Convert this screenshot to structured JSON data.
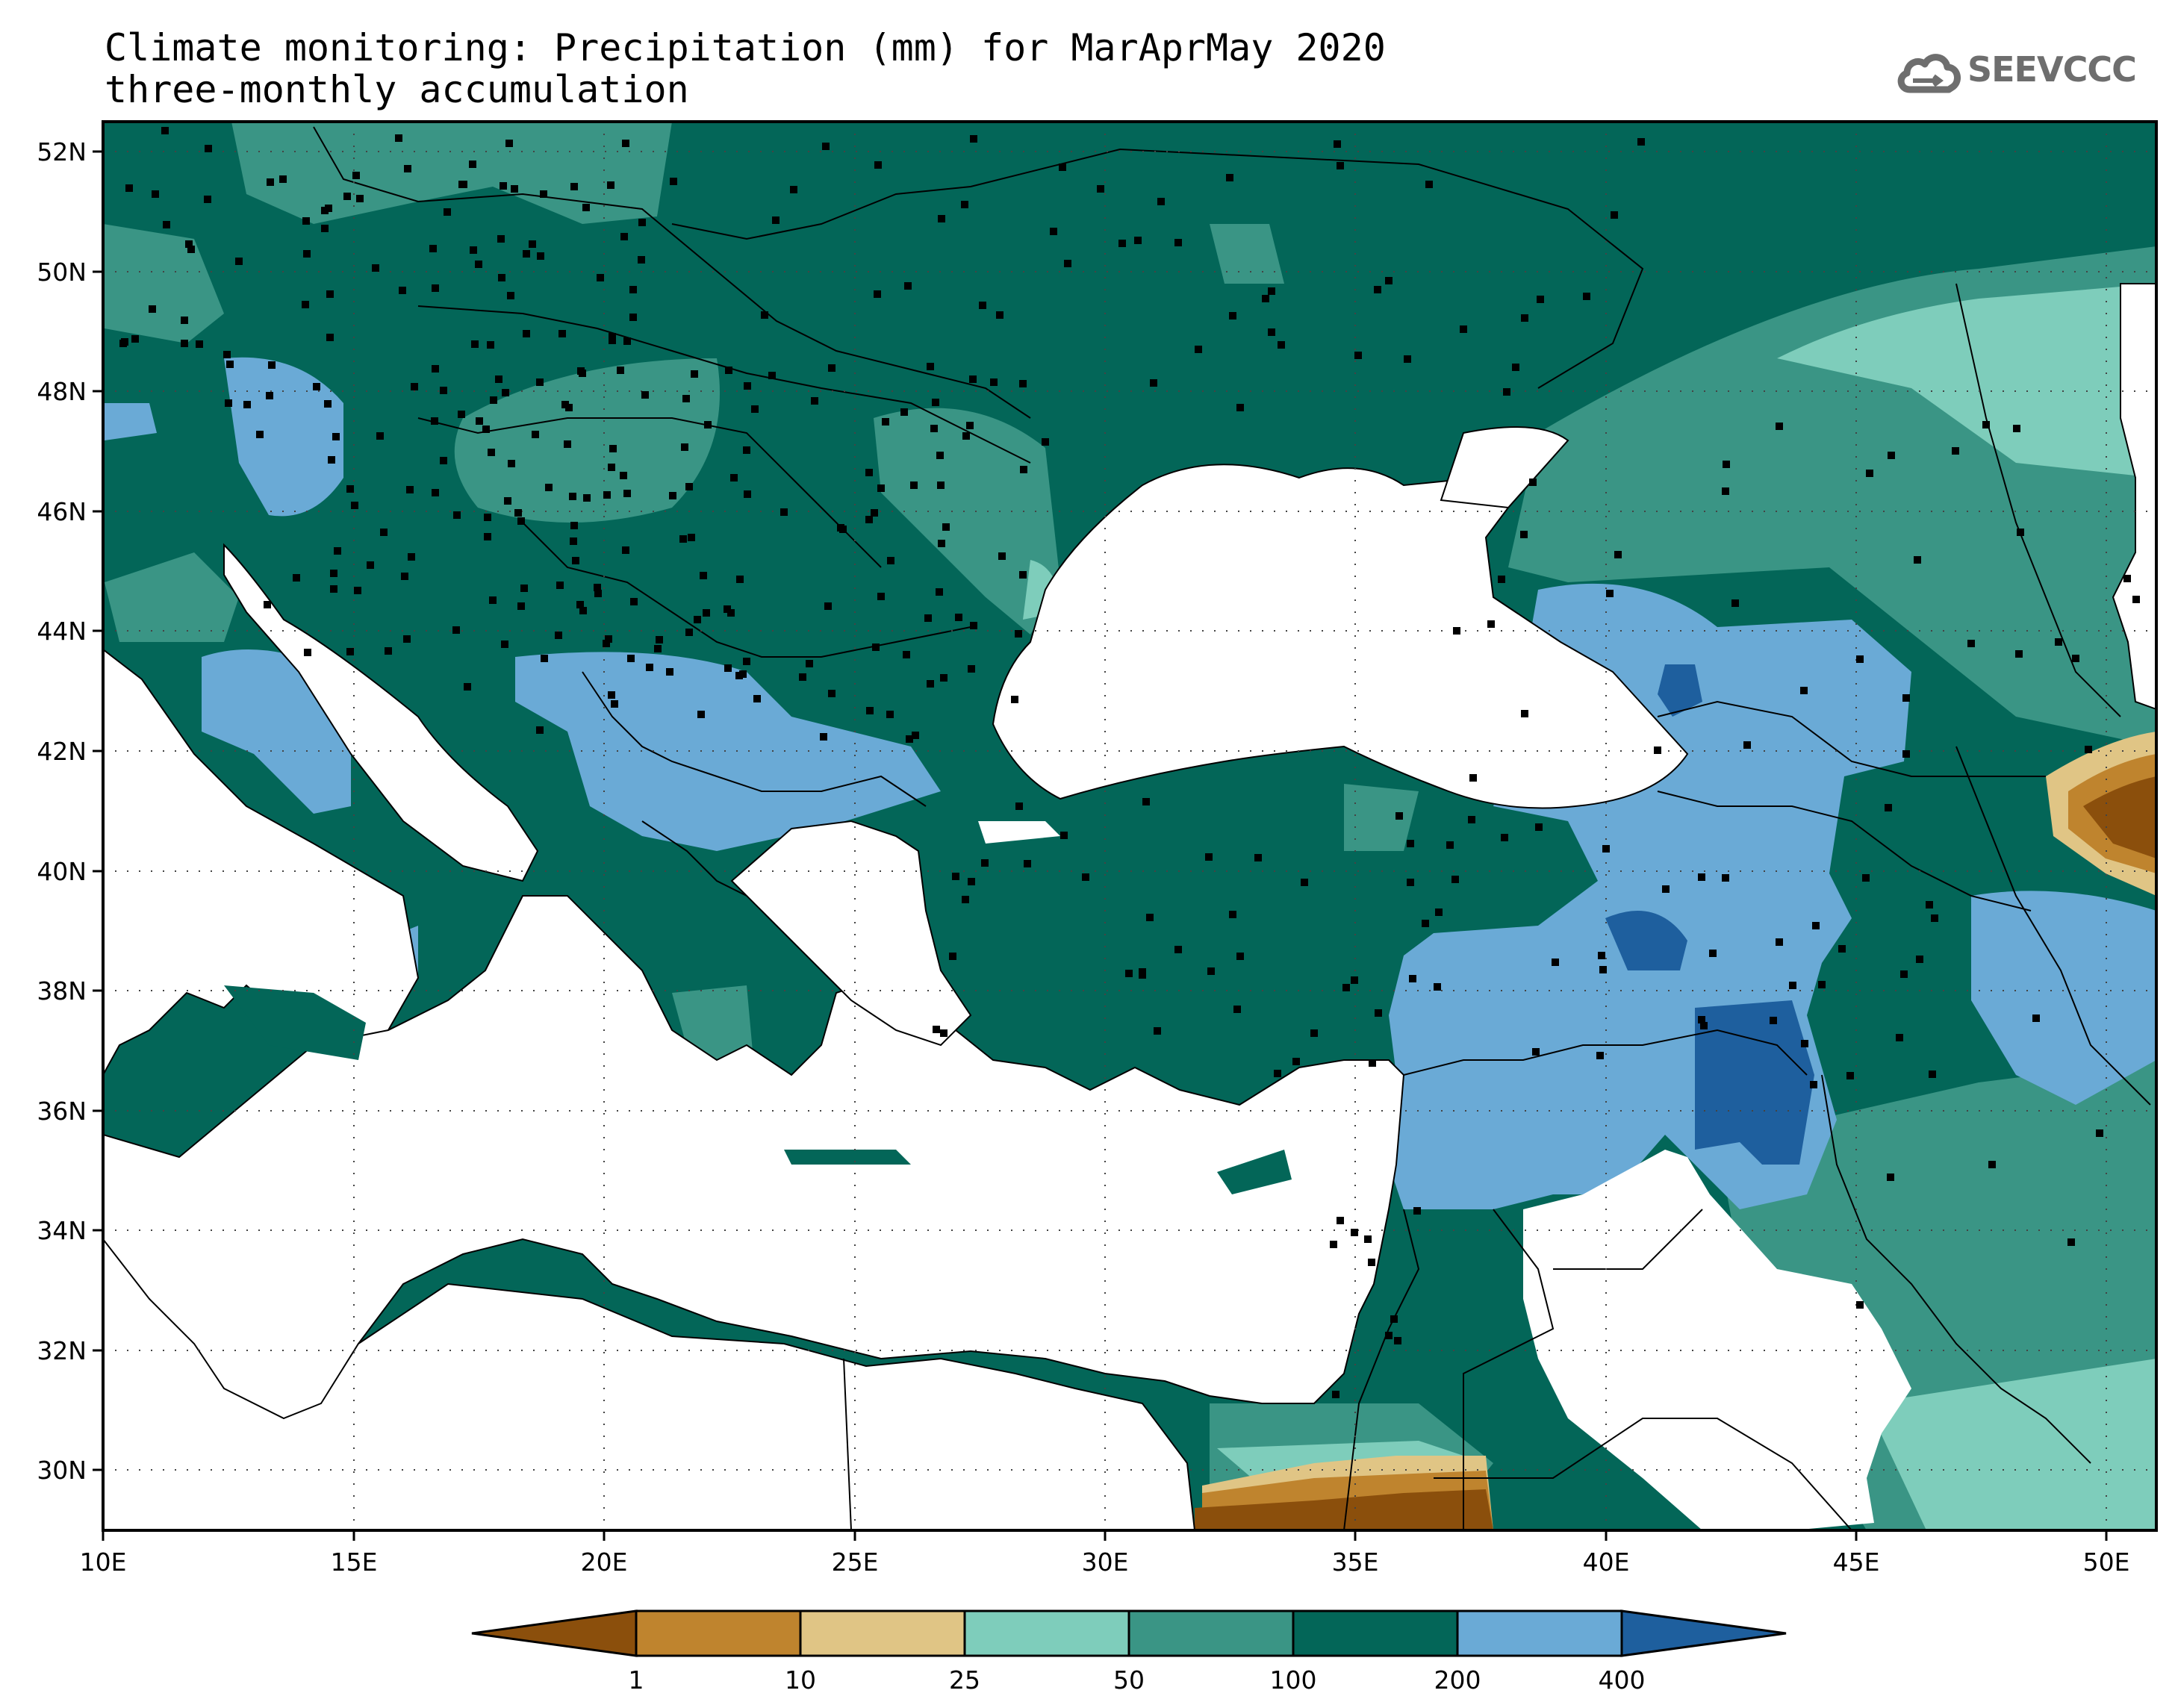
{
  "title": {
    "line1": "Climate monitoring: Precipitation (mm) for MarAprMay 2020",
    "line2": "three-monthly accumulation"
  },
  "logo": {
    "text": "SEEVCCC",
    "icon": "cloud-icon"
  },
  "map": {
    "lon_range": [
      10,
      51
    ],
    "lat_range": [
      29,
      52.5
    ],
    "lat_ticks": [
      "52N",
      "50N",
      "48N",
      "46N",
      "44N",
      "42N",
      "40N",
      "38N",
      "36N",
      "34N",
      "32N",
      "30N"
    ],
    "lon_ticks": [
      "10E",
      "15E",
      "20E",
      "25E",
      "30E",
      "35E",
      "40E",
      "45E",
      "50E"
    ],
    "grid": true,
    "stations": "observing stations marked as black squares"
  },
  "colorbar": {
    "labels": [
      "1",
      "10",
      "25",
      "50",
      "100",
      "200",
      "400"
    ],
    "colors": [
      "#8b4f0c",
      "#bf842e",
      "#e0c585",
      "#7ecdbb",
      "#3a9585",
      "#036658",
      "#6aaad6",
      "#1e5f9e"
    ]
  }
}
